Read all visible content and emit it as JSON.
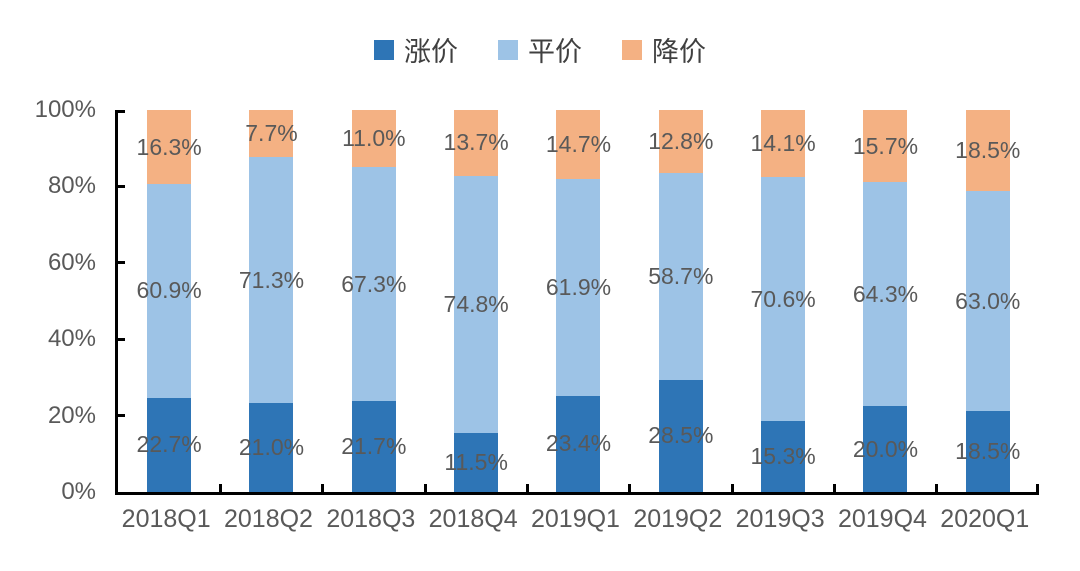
{
  "legend": {
    "position": "top-center"
  },
  "chart_data": {
    "type": "bar",
    "subtype": "stacked-100-percent",
    "title": "",
    "xlabel": "",
    "ylabel": "",
    "categories": [
      "2018Q1",
      "2018Q2",
      "2018Q3",
      "2018Q4",
      "2019Q1",
      "2019Q2",
      "2019Q3",
      "2019Q4",
      "2020Q1"
    ],
    "series": [
      {
        "name": "涨价",
        "color": "#2E75B6",
        "values": [
          22.7,
          21.0,
          21.7,
          11.5,
          23.4,
          28.5,
          15.3,
          20.0,
          18.5
        ]
      },
      {
        "name": "平价",
        "color": "#9DC3E6",
        "values": [
          60.9,
          71.3,
          67.3,
          74.8,
          61.9,
          58.7,
          70.6,
          64.3,
          63.0
        ]
      },
      {
        "name": "降价",
        "color": "#F4B183",
        "values": [
          16.3,
          7.7,
          11.0,
          13.7,
          14.7,
          12.8,
          14.1,
          15.7,
          18.5
        ]
      }
    ],
    "data_label_format": "one-decimal-percent",
    "y_ticks": [
      {
        "label": "0%",
        "value": 0
      },
      {
        "label": "20%",
        "value": 20
      },
      {
        "label": "40%",
        "value": 40
      },
      {
        "label": "60%",
        "value": 60
      },
      {
        "label": "80%",
        "value": 80
      },
      {
        "label": "100%",
        "value": 100
      }
    ],
    "ylim": [
      0,
      100
    ],
    "grid": false,
    "legend_position": "top",
    "colors": {
      "axis_line": "#000000",
      "tick_label": "#595959",
      "data_label": "#595959",
      "legend_text": "#404040",
      "background": "#ffffff"
    }
  }
}
